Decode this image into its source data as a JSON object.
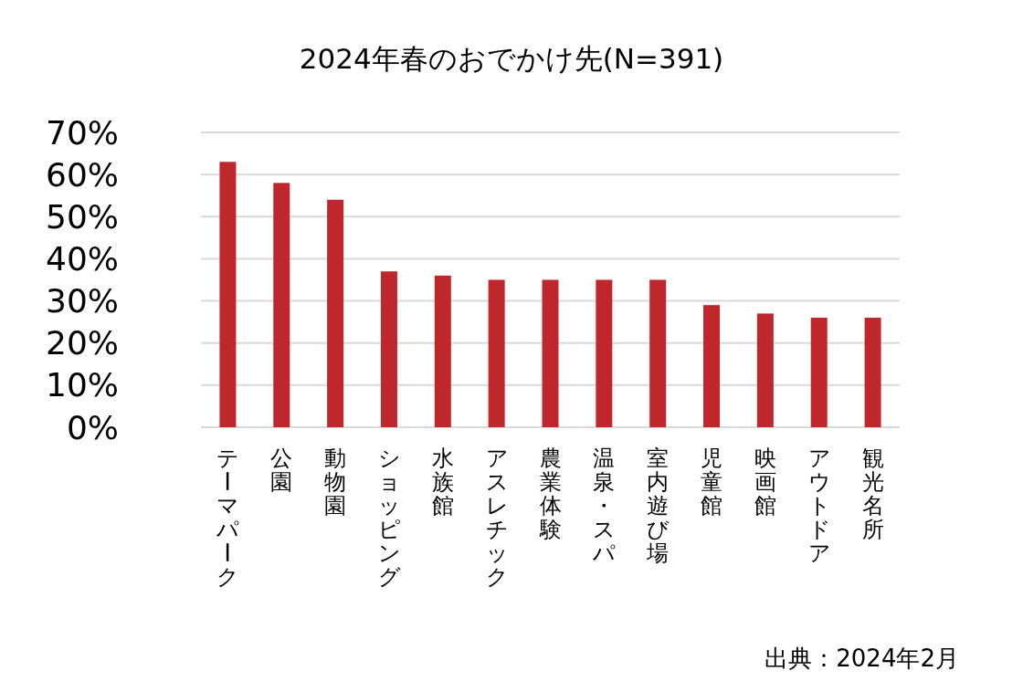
{
  "chart_data": {
    "type": "bar",
    "title": "2024年春のおでかけ先(N=391)",
    "categories": [
      "テーマパーク",
      "公園",
      "動物園",
      "ショッピング",
      "水族館",
      "アスレチック",
      "農業体験",
      "温泉・スパ",
      "室内遊び場",
      "児童館",
      "映画館",
      "アウトドア",
      "観光名所"
    ],
    "values": [
      63,
      58,
      54,
      37,
      36,
      35,
      35,
      35,
      35,
      29,
      27,
      26,
      26
    ],
    "color": "#c0272d",
    "ylim": [
      0,
      70
    ],
    "yticks": [
      {
        "value": 0,
        "label": "0%"
      },
      {
        "value": 10,
        "label": "10%"
      },
      {
        "value": 20,
        "label": "20%"
      },
      {
        "value": 30,
        "label": "30%"
      },
      {
        "value": 40,
        "label": "40%"
      },
      {
        "value": 50,
        "label": "50%"
      },
      {
        "value": 60,
        "label": "60%"
      },
      {
        "value": 70,
        "label": "70%"
      }
    ],
    "grid": "y",
    "annotations": [
      "出典：2024年2月"
    ]
  }
}
